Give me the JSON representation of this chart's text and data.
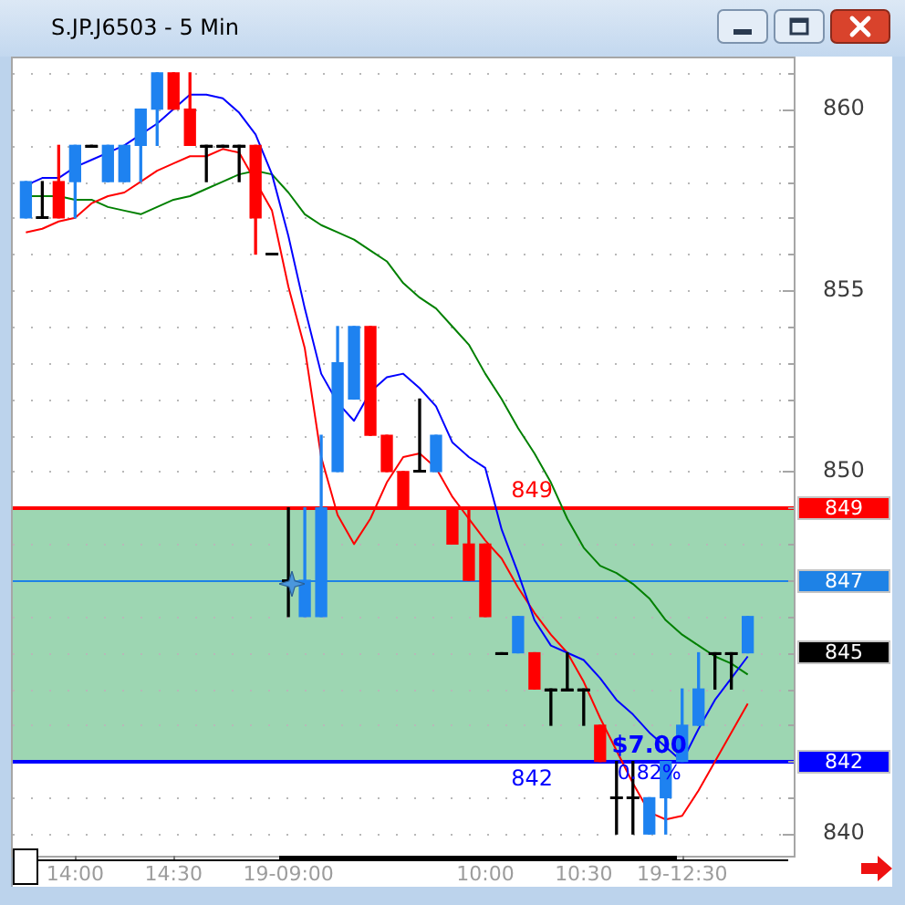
{
  "chart_data": {
    "type": "candlestick",
    "title": "S.JP.J6503 - 5 Min",
    "categories": [
      null,
      null,
      null,
      "14:00",
      null,
      null,
      null,
      null,
      null,
      "14:30",
      null,
      null,
      null,
      null,
      null,
      null,
      "19-09:00",
      null,
      null,
      null,
      null,
      null,
      null,
      null,
      null,
      null,
      null,
      null,
      "10:00",
      null,
      null,
      null,
      null,
      null,
      "10:30",
      null,
      null,
      null,
      null,
      null,
      "19-12:30",
      null,
      null,
      null,
      null
    ],
    "ohlc": [
      [
        857,
        858,
        857,
        858
      ],
      [
        857,
        858,
        857,
        857
      ],
      [
        858,
        859,
        857,
        857
      ],
      [
        858,
        859,
        857,
        859
      ],
      [
        859,
        859,
        859,
        859
      ],
      [
        858,
        859,
        858,
        859
      ],
      [
        858,
        859,
        858,
        859
      ],
      [
        859,
        860,
        858,
        860
      ],
      [
        860,
        861,
        859,
        861
      ],
      [
        861,
        861,
        860,
        860
      ],
      [
        860,
        861,
        859,
        859
      ],
      [
        859,
        859,
        858,
        859
      ],
      [
        859,
        859,
        859,
        859
      ],
      [
        859,
        859,
        858,
        859
      ],
      [
        859,
        859,
        856,
        857
      ],
      [
        856,
        856,
        856,
        856
      ],
      [
        847,
        849,
        846,
        847
      ],
      [
        846,
        849,
        846,
        847
      ],
      [
        846,
        851,
        846,
        849
      ],
      [
        850,
        854,
        850,
        853
      ],
      [
        852,
        854,
        852,
        854
      ],
      [
        854,
        854,
        851,
        851
      ],
      [
        851,
        851,
        850,
        850
      ],
      [
        850,
        850,
        849,
        849
      ],
      [
        850,
        852,
        850,
        850
      ],
      [
        850,
        851,
        850,
        851
      ],
      [
        849,
        849,
        848,
        848
      ],
      [
        848,
        849,
        847,
        847
      ],
      [
        848,
        848,
        846,
        846
      ],
      [
        845,
        845,
        845,
        845
      ],
      [
        845,
        846,
        845,
        846
      ],
      [
        845,
        845,
        844,
        844
      ],
      [
        844,
        844,
        843,
        844
      ],
      [
        844,
        845,
        844,
        844
      ],
      [
        844,
        844,
        843,
        844
      ],
      [
        843,
        843,
        842,
        842
      ],
      [
        841,
        842,
        840,
        841
      ],
      [
        841,
        842,
        840,
        841
      ],
      [
        840,
        841,
        840,
        841
      ],
      [
        841,
        842,
        840,
        842
      ],
      [
        842,
        844,
        842,
        843
      ],
      [
        843,
        845,
        843,
        844
      ],
      [
        845,
        845,
        844,
        845
      ],
      [
        845,
        845,
        844,
        845
      ],
      [
        845,
        846,
        845,
        846
      ]
    ],
    "colors": [
      "#1e82f0",
      "#000000",
      "#ff0000",
      "#1e82f0",
      "#000000",
      "#1e82f0",
      "#1e82f0",
      "#1e82f0",
      "#1e82f0",
      "#ff0000",
      "#ff0000",
      "#000000",
      "#000000",
      "#000000",
      "#ff0000",
      "#000000",
      "#000000",
      "#1e82f0",
      "#1e82f0",
      "#1e82f0",
      "#1e82f0",
      "#ff0000",
      "#ff0000",
      "#ff0000",
      "#000000",
      "#1e82f0",
      "#ff0000",
      "#ff0000",
      "#ff0000",
      "#000000",
      "#1e82f0",
      "#ff0000",
      "#000000",
      "#000000",
      "#000000",
      "#ff0000",
      "#000000",
      "#000000",
      "#1e82f0",
      "#1e82f0",
      "#1e82f0",
      "#1e82f0",
      "#000000",
      "#000000",
      "#1e82f0"
    ],
    "series": [
      {
        "type": "line",
        "color": "#0000ff",
        "values": [
          857.9,
          858.1,
          858.1,
          858.4,
          858.6,
          858.8,
          859.0,
          859.3,
          859.6,
          860.0,
          860.4,
          860.4,
          860.3,
          859.9,
          859.3,
          858.2,
          856.5,
          854.5,
          852.7,
          851.9,
          851.4,
          852.2,
          852.6,
          852.7,
          852.3,
          851.8,
          850.8,
          850.4,
          850.1,
          848.4,
          847.2,
          845.9,
          845.2,
          845.0,
          844.8,
          844.3,
          843.7,
          843.3,
          842.8,
          842.4,
          842.0,
          842.9,
          843.7,
          844.3,
          844.9
        ]
      },
      {
        "type": "line",
        "color": "#ff0000",
        "values": [
          856.6,
          856.7,
          856.9,
          857.0,
          857.4,
          857.6,
          857.7,
          858.0,
          858.3,
          858.5,
          858.7,
          858.7,
          858.9,
          858.8,
          858.0,
          857.2,
          855.1,
          853.4,
          850.4,
          848.8,
          848.0,
          848.7,
          849.7,
          850.4,
          850.5,
          850.1,
          849.3,
          848.7,
          848.1,
          847.6,
          846.8,
          846.1,
          845.5,
          845.0,
          844.2,
          843.2,
          842.3,
          841.4,
          840.6,
          840.4,
          840.5,
          841.2,
          842.0,
          842.8,
          843.6
        ]
      },
      {
        "type": "line",
        "color": "#008000",
        "values": [
          857.6,
          857.6,
          857.6,
          857.5,
          857.5,
          857.3,
          857.2,
          857.1,
          857.3,
          857.5,
          857.6,
          857.8,
          858.0,
          858.2,
          858.3,
          858.2,
          857.7,
          857.1,
          856.8,
          856.6,
          856.4,
          856.1,
          855.8,
          855.2,
          854.8,
          854.5,
          854.0,
          853.5,
          852.7,
          852.0,
          851.2,
          850.5,
          849.7,
          848.7,
          847.9,
          847.4,
          847.2,
          846.9,
          846.5,
          845.9,
          845.5,
          845.2,
          844.9,
          844.7,
          844.4
        ]
      }
    ],
    "ylim": [
      839.4,
      861.4
    ],
    "yticks": [
      840,
      {
        "value": 841,
        "label": null
      },
      {
        "value": 842,
        "label": null
      },
      {
        "value": 843,
        "label": null
      },
      {
        "value": 844,
        "label": null
      },
      {
        "value": 845,
        "label": null
      },
      {
        "value": 846,
        "label": null
      },
      {
        "value": 847,
        "label": null
      },
      {
        "value": 848,
        "label": null
      },
      {
        "value": 849,
        "label": null
      },
      850,
      {
        "value": 851,
        "label": null
      },
      {
        "value": 852,
        "label": null
      },
      {
        "value": 853,
        "label": null
      },
      {
        "value": 854,
        "label": null
      },
      855,
      {
        "value": 856,
        "label": null
      },
      {
        "value": 857,
        "label": null
      },
      {
        "value": 858,
        "label": null
      },
      {
        "value": 859,
        "label": null
      },
      860,
      {
        "value": 861,
        "label": null
      }
    ],
    "grid": "y",
    "bands": [
      {
        "axis": "y",
        "from": 842,
        "to": 849,
        "color": "#9dd6b2"
      }
    ],
    "ref_lines": [
      {
        "axis": "y",
        "value": 849,
        "label": "849",
        "color": "#ff0000"
      },
      {
        "axis": "y",
        "value": 847,
        "label": "847",
        "color": "#1e82e6"
      },
      {
        "axis": "y",
        "value": 842,
        "label": "842",
        "color": "#0000ff"
      }
    ],
    "annotations": [
      "849",
      "842",
      "845",
      "$7.00",
      "0.82%"
    ]
  }
}
